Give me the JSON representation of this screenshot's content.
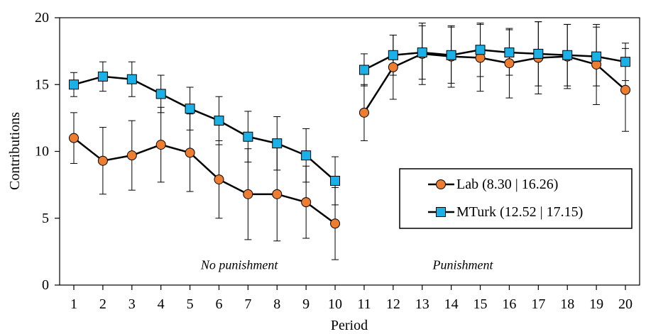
{
  "chart_data": {
    "type": "line",
    "xlabel": "Period",
    "ylabel": "Contributions",
    "xlim": [
      1,
      20
    ],
    "ylim": [
      0,
      20
    ],
    "x_ticks": [
      "1",
      "2",
      "3",
      "4",
      "5",
      "6",
      "7",
      "8",
      "9",
      "10",
      "11",
      "12",
      "13",
      "14",
      "15",
      "16",
      "17",
      "18",
      "19",
      "20"
    ],
    "y_ticks": [
      "0",
      "5",
      "10",
      "15",
      "20"
    ],
    "grid": false,
    "legend_position": "right-center",
    "annotations": [
      {
        "text": "No punishment",
        "italic": true,
        "x": 6.7,
        "y": 1.5
      },
      {
        "text": "Punishment",
        "italic": true,
        "x": 14.4,
        "y": 1.5
      }
    ],
    "segments": [
      [
        1,
        10
      ],
      [
        11,
        20
      ]
    ],
    "series": [
      {
        "name": "Lab (8.30 | 16.26)",
        "marker": "circle",
        "color": "#ed7d31",
        "x": [
          1,
          2,
          3,
          4,
          5,
          6,
          7,
          8,
          9,
          10,
          11,
          12,
          13,
          14,
          15,
          16,
          17,
          18,
          19,
          20
        ],
        "y": [
          11.0,
          9.3,
          9.7,
          10.5,
          9.9,
          7.9,
          6.8,
          6.8,
          6.2,
          4.6,
          12.9,
          16.3,
          17.3,
          17.1,
          17.0,
          16.6,
          17.0,
          17.1,
          16.5,
          14.6
        ],
        "err": [
          1.9,
          2.5,
          2.6,
          2.8,
          2.9,
          2.9,
          3.4,
          3.5,
          2.7,
          2.7,
          2.1,
          2.4,
          2.3,
          2.3,
          2.5,
          2.6,
          2.7,
          2.4,
          3.0,
          3.1
        ]
      },
      {
        "name": "MTurk (12.52 | 17.15)",
        "marker": "square",
        "color": "#1cb1e6",
        "x": [
          1,
          2,
          3,
          4,
          5,
          6,
          7,
          8,
          9,
          10,
          11,
          12,
          13,
          14,
          15,
          16,
          17,
          18,
          19,
          20
        ],
        "y": [
          15.0,
          15.6,
          15.4,
          14.3,
          13.2,
          12.3,
          11.1,
          10.6,
          9.7,
          7.8,
          16.1,
          17.2,
          17.4,
          17.2,
          17.6,
          17.4,
          17.3,
          17.2,
          17.1,
          16.7
        ],
        "err": [
          0.9,
          1.1,
          1.3,
          1.4,
          1.6,
          1.8,
          1.9,
          2.0,
          2.0,
          1.8,
          1.2,
          1.5,
          2.0,
          2.1,
          2.0,
          1.7,
          2.4,
          2.3,
          2.2,
          1.4
        ]
      }
    ]
  }
}
